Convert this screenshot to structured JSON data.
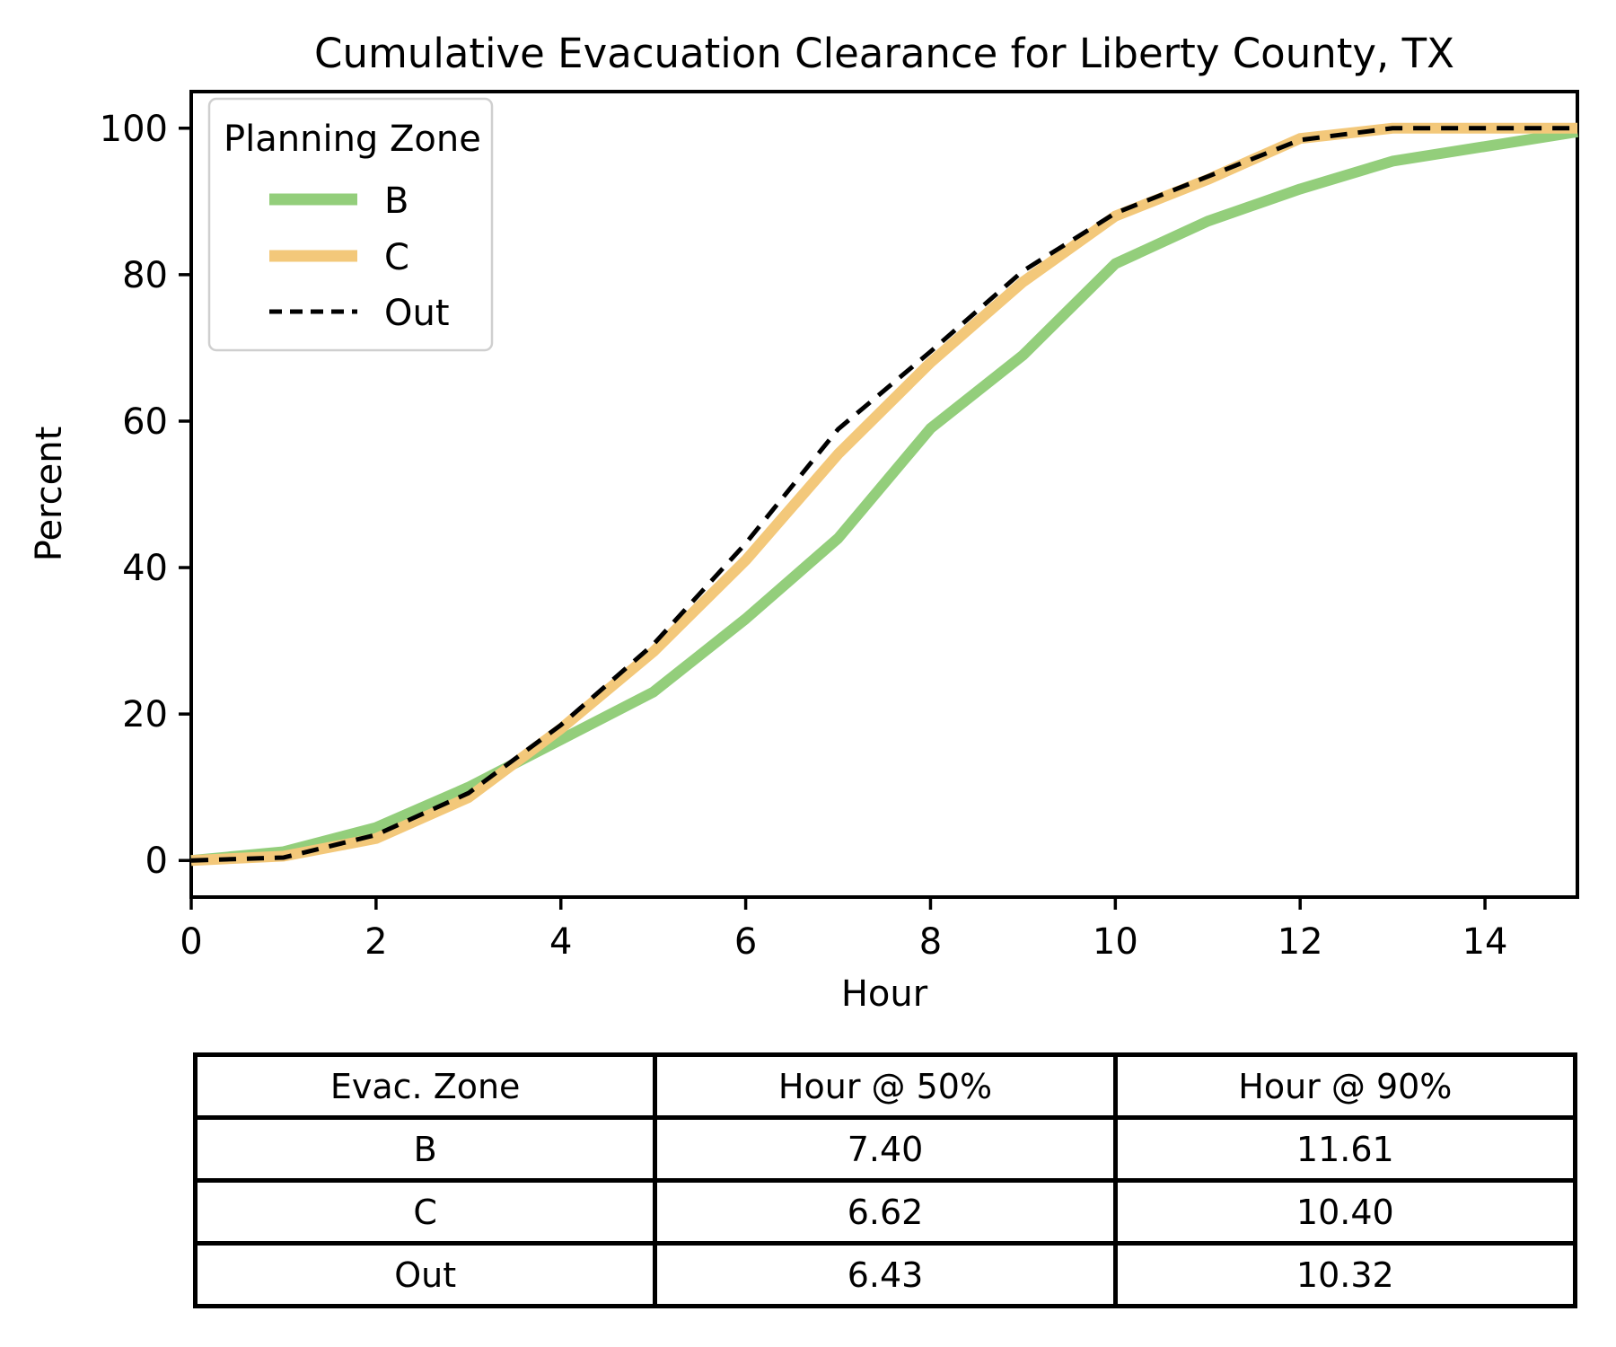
{
  "figure": {
    "background": "#ffffff",
    "text_color": "#000000"
  },
  "chart_data": {
    "type": "line",
    "title": "Cumulative Evacuation Clearance for Liberty County, TX",
    "xlabel": "Hour",
    "ylabel": "Percent",
    "xlim": [
      0,
      15
    ],
    "ylim": [
      -5,
      105
    ],
    "x_ticks": [
      0,
      2,
      4,
      6,
      8,
      10,
      12,
      14
    ],
    "y_ticks": [
      0,
      20,
      40,
      60,
      80,
      100
    ],
    "grid": false,
    "legend_title": "Planning Zone",
    "legend_position": "upper left",
    "x": [
      0,
      1,
      2,
      3,
      4,
      5,
      6,
      7,
      8,
      9,
      10,
      11,
      12,
      13,
      14,
      15
    ],
    "series": [
      {
        "name": "B",
        "color": "#93ce7b",
        "style": "solid",
        "width": 12,
        "values": [
          0,
          1.2,
          4.5,
          10,
          16.5,
          23,
          33,
          44,
          59,
          69,
          81.5,
          87.3,
          91.7,
          95.5,
          97.5,
          99.5
        ]
      },
      {
        "name": "C",
        "color": "#f3c87a",
        "style": "solid",
        "width": 12,
        "values": [
          0,
          0.6,
          3.0,
          8.6,
          18,
          28.5,
          41,
          55.5,
          68,
          79,
          88,
          93,
          98.6,
          100,
          100,
          100
        ]
      },
      {
        "name": "Out",
        "color": "#000000",
        "style": "dashed",
        "width": 5,
        "values": [
          0,
          0.4,
          3.5,
          9.2,
          18.5,
          29.5,
          43.3,
          58.9,
          69.5,
          80.5,
          88.4,
          93.4,
          98.4,
          100,
          100,
          100
        ]
      }
    ]
  },
  "table": {
    "headers": [
      "Evac. Zone",
      "Hour @ 50%",
      "Hour @ 90%"
    ],
    "rows": [
      {
        "zone": "B",
        "h50": "7.40",
        "h90": "11.61"
      },
      {
        "zone": "C",
        "h50": "6.62",
        "h90": "10.40"
      },
      {
        "zone": "Out",
        "h50": "6.43",
        "h90": "10.32"
      }
    ]
  }
}
